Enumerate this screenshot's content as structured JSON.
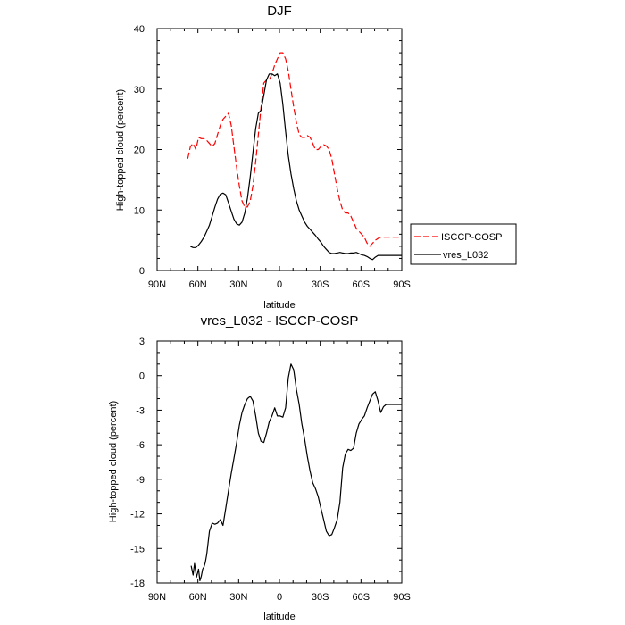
{
  "chart_data": [
    {
      "type": "line",
      "title": "DJF",
      "xlabel": "latitude",
      "ylabel": "High-topped cloud (percent)",
      "xlim": [
        -90,
        90
      ],
      "ylim": [
        0,
        40
      ],
      "xticks": [
        -90,
        -60,
        -30,
        0,
        30,
        60,
        90
      ],
      "xtick_labels": [
        "90N",
        "60N",
        "30N",
        "0",
        "30S",
        "60S",
        "90S"
      ],
      "yticks": [
        0,
        10,
        20,
        30,
        40
      ],
      "ytick_labels": [
        "0",
        "10",
        "20",
        "30",
        "40"
      ],
      "legend": {
        "placement": "outside-right"
      },
      "series": [
        {
          "name": "ISCCP-COSP",
          "color": "#ff0000",
          "dash": "dashed",
          "x": [
            -67.5,
            -65.5,
            -63.5,
            -61.5,
            -59.5,
            -57.5,
            -55.5,
            -53.5,
            -51.5,
            -49.5,
            -47.5,
            -45.5,
            -43.5,
            -41.5,
            -39.5,
            -37.5,
            -35.5,
            -33.5,
            -31.5,
            -29.5,
            -27.5,
            -25.5,
            -23.5,
            -21.5,
            -19.5,
            -17.5,
            -15.5,
            -13.5,
            -11.5,
            -9.5,
            -7.5,
            -5.5,
            -3.5,
            -1.5,
            0.5,
            2.5,
            4.5,
            6.5,
            8.5,
            10.5,
            12.5,
            14.5,
            16.5,
            18.5,
            20.5,
            22.5,
            24.5,
            26.5,
            28.5,
            30.5,
            32.5,
            34.5,
            36.5,
            38.5,
            40.5,
            42.5,
            44.5,
            46.5,
            48.5,
            50.5,
            52.5,
            54.5,
            56.5,
            58.5,
            60.5,
            62.5,
            64.5,
            66.5,
            68.5,
            70.5,
            72.5,
            74.5,
            76.5,
            78.5,
            80.5,
            82.5,
            84.5,
            86.5,
            88.5,
            90
          ],
          "y": [
            18.5,
            20.5,
            21,
            20,
            22,
            21.8,
            21.8,
            21.5,
            21,
            20.5,
            21,
            22.5,
            24,
            25,
            25.5,
            26,
            24,
            20.5,
            17,
            14,
            11.5,
            10.5,
            10.5,
            11.5,
            14,
            18,
            22.5,
            27,
            31,
            31.5,
            31.5,
            32.5,
            34,
            35,
            36,
            36,
            35,
            33,
            30,
            27,
            24.5,
            22.5,
            22,
            22,
            22.3,
            22,
            21,
            20,
            20,
            20.5,
            20.8,
            20.6,
            20,
            18.5,
            16,
            13.5,
            11.5,
            10,
            9.5,
            9.5,
            9,
            8,
            7,
            6.5,
            6,
            5.5,
            4.5,
            4,
            4.5,
            5,
            5.3,
            5.5,
            5.5,
            5.5,
            5.5,
            5.5,
            5.5,
            5.5,
            5.5,
            5.5
          ]
        },
        {
          "name": "vres_L032",
          "color": "#000000",
          "dash": "solid",
          "x": [
            -65.5,
            -63.5,
            -61.5,
            -59.5,
            -57.5,
            -55.5,
            -53.5,
            -51.5,
            -49.5,
            -47.5,
            -45.5,
            -43.5,
            -41.5,
            -39.5,
            -37.5,
            -35.5,
            -33.5,
            -31.5,
            -29.5,
            -27.5,
            -25.5,
            -23.5,
            -21.5,
            -19.5,
            -17.5,
            -15.5,
            -13.5,
            -11.5,
            -9.5,
            -7.5,
            -5.5,
            -3.5,
            -1.5,
            0.5,
            2.5,
            4.5,
            6.5,
            8.5,
            10.5,
            12.5,
            14.5,
            16.5,
            18.5,
            20.5,
            22.5,
            24.5,
            26.5,
            28.5,
            30.5,
            32.5,
            34.5,
            36.5,
            38.5,
            40.5,
            42.5,
            44.5,
            46.5,
            48.5,
            50.5,
            52.5,
            54.5,
            56.5,
            58.5,
            60.5,
            62.5,
            64.5,
            66.5,
            68.5,
            70.5,
            72.5,
            74.5,
            76.5,
            78.5,
            80.5,
            82.5,
            84.5,
            86.5,
            88.5,
            90
          ],
          "y": [
            4,
            3.8,
            3.8,
            4.2,
            4.8,
            5.5,
            6.5,
            7.5,
            9,
            10.5,
            11.8,
            12.6,
            12.8,
            12.5,
            11.2,
            9.8,
            8.5,
            7.7,
            7.5,
            8,
            9.5,
            12,
            15.5,
            19.5,
            23.5,
            26,
            26.5,
            29,
            31.5,
            32.5,
            32.5,
            32.2,
            32.5,
            31,
            27.5,
            23,
            19,
            16,
            13.5,
            11.5,
            10,
            9,
            8,
            7.3,
            6.8,
            6.3,
            5.8,
            5.2,
            4.7,
            4,
            3.5,
            3,
            2.8,
            2.8,
            2.9,
            3,
            2.9,
            2.8,
            2.8,
            2.9,
            2.9,
            3,
            2.8,
            2.6,
            2.5,
            2.3,
            2,
            1.8,
            2.2,
            2.5,
            2.5,
            2.5,
            2.5,
            2.5,
            2.5,
            2.5,
            2.5,
            2.5,
            2.5
          ]
        }
      ]
    },
    {
      "type": "line",
      "title": "vres_L032 - ISCCP-COSP",
      "xlabel": "latitude",
      "ylabel": "High-topped cloud (percent)",
      "xlim": [
        -90,
        90
      ],
      "ylim": [
        -18,
        3
      ],
      "xticks": [
        -90,
        -60,
        -30,
        0,
        30,
        60,
        90
      ],
      "xtick_labels": [
        "90N",
        "60N",
        "30N",
        "0",
        "30S",
        "60S",
        "90S"
      ],
      "yticks": [
        3,
        0,
        -3,
        -6,
        -9,
        -12,
        -15,
        -18
      ],
      "ytick_labels": [
        "3",
        "0",
        "-3",
        "-6",
        "-9",
        "-12",
        "-15",
        "-18"
      ],
      "series": [
        {
          "color": "#000000",
          "dash": "solid",
          "x": [
            -65,
            -63.5,
            -62.5,
            -61,
            -59.5,
            -58.5,
            -57.5,
            -56.5,
            -55.5,
            -54.5,
            -53.5,
            -52.5,
            -51.5,
            -49.5,
            -47.5,
            -45.5,
            -43.5,
            -41.5,
            -39.5,
            -37.5,
            -35.5,
            -33.5,
            -31.5,
            -29.5,
            -27.5,
            -25.5,
            -23.5,
            -21.5,
            -19.5,
            -17.5,
            -15.5,
            -13.5,
            -11.5,
            -9.5,
            -7.5,
            -5.5,
            -3.5,
            -1.5,
            0.5,
            2.5,
            4.5,
            6.5,
            8.5,
            10.5,
            12.5,
            14.5,
            16.5,
            18.5,
            20.5,
            22.5,
            24.5,
            26.5,
            28.5,
            30.5,
            32.5,
            34.5,
            36.5,
            38.5,
            40.5,
            42.5,
            44.5,
            46.5,
            48.5,
            50.5,
            52.5,
            54.5,
            56.5,
            58.5,
            60.5,
            62.5,
            64.5,
            66.5,
            68.5,
            70.5,
            72.5,
            74.5,
            76.5,
            78.5,
            80.5,
            82.5,
            84.5,
            86.5,
            88.5,
            90
          ],
          "y": [
            -16.5,
            -17.3,
            -16.3,
            -17.5,
            -16.8,
            -17.8,
            -17.4,
            -16.8,
            -16.6,
            -16.2,
            -15.5,
            -14.5,
            -13.5,
            -12.8,
            -12.9,
            -12.8,
            -12.5,
            -13,
            -11.5,
            -10,
            -8.5,
            -7.2,
            -5.8,
            -4.3,
            -3.2,
            -2.5,
            -2,
            -1.8,
            -2.2,
            -3.5,
            -5,
            -5.7,
            -5.8,
            -5,
            -4,
            -3.5,
            -2.8,
            -3.5,
            -3.5,
            -3.6,
            -2.8,
            -0.2,
            1,
            0.5,
            -1.2,
            -2.5,
            -4.2,
            -5.5,
            -7,
            -8.3,
            -9.3,
            -9.8,
            -10.5,
            -11.5,
            -12.5,
            -13.5,
            -13.9,
            -13.8,
            -13.2,
            -12.5,
            -11,
            -8,
            -6.8,
            -6.4,
            -6.5,
            -6.3,
            -5,
            -4.2,
            -3.8,
            -3.5,
            -2.8,
            -2.2,
            -1.6,
            -1.4,
            -2.2,
            -3.2,
            -2.7,
            -2.5,
            -2.5,
            -2.5,
            -2.5,
            -2.5,
            -2.5,
            -2.5
          ]
        }
      ]
    }
  ]
}
